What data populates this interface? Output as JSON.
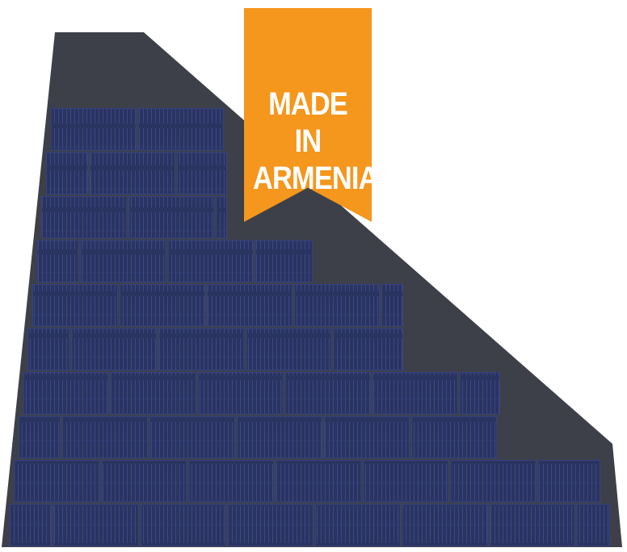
{
  "badge": {
    "line1": "MADE IN",
    "line2": "ARMENIA",
    "color": "#f5961d",
    "text_color": "#ffffff"
  },
  "panel": {
    "frame_color": "#3d4049",
    "cell_color": "#2a3460",
    "cell_border_color": "#344383",
    "finger_color": "#4c5ab0",
    "rows": 10
  }
}
